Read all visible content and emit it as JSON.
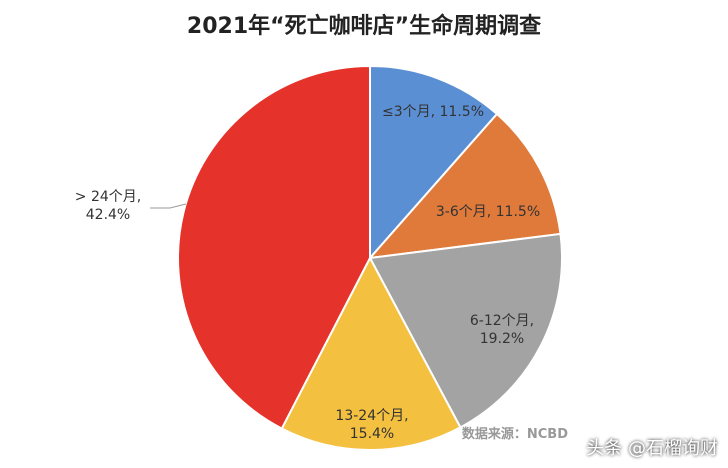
{
  "chart_data": {
    "type": "pie",
    "title": "2021年“死亡咖啡店”生命周期调查",
    "values": [
      11.5,
      11.5,
      19.2,
      15.4,
      42.4
    ],
    "value_labels": [
      "≤3个月, 11.5%",
      "3-6个月, 11.5%",
      "6-12个月, 19.2%",
      "13-24个月, 15.4%",
      "> 24个月, 42.4%"
    ],
    "colors": [
      "#5b8fd4",
      "#e07a3a",
      "#a3a3a3",
      "#f4c03f",
      "#e5322a"
    ],
    "source": "数据来源：NCBD"
  },
  "watermark": "头条 @石榴询财"
}
